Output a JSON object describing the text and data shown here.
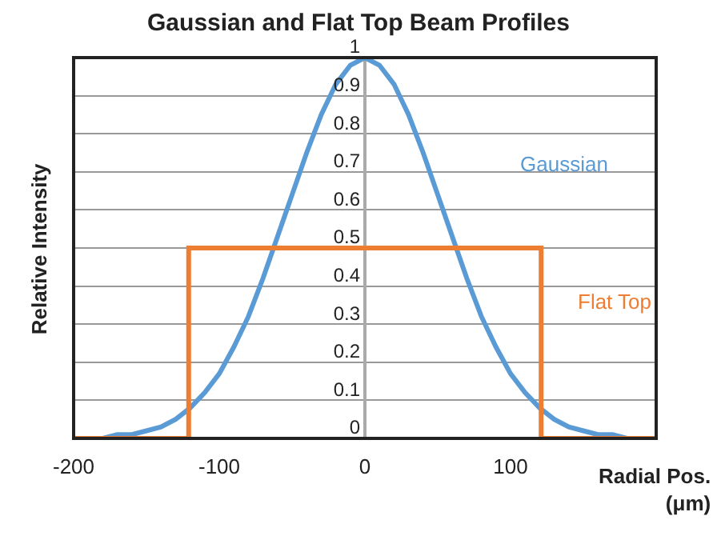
{
  "chart_data": {
    "type": "line",
    "title": "Gaussian and Flat Top Beam Profiles",
    "xlabel": "Radial Pos.\n(μm)",
    "ylabel": "Relative Intensity",
    "xlim": [
      -200,
      200
    ],
    "xticks": [
      -200,
      -100,
      0,
      100
    ],
    "ylim": [
      0,
      1
    ],
    "yticks": [
      0,
      0.1,
      0.2,
      0.3,
      0.4,
      0.5,
      0.6,
      0.7,
      0.8,
      0.9,
      1
    ],
    "grid": "y",
    "legend": false,
    "series": [
      {
        "name": "Gaussian",
        "color": "#5b9bd5",
        "x": [
          -200,
          -190,
          -180,
          -170,
          -160,
          -150,
          -140,
          -130,
          -120,
          -110,
          -100,
          -90,
          -80,
          -70,
          -60,
          -50,
          -40,
          -30,
          -20,
          -10,
          0,
          10,
          20,
          30,
          40,
          50,
          60,
          70,
          80,
          90,
          100,
          110,
          120,
          130,
          140,
          150,
          160,
          170,
          180,
          190,
          200
        ],
        "values": [
          0,
          0,
          0,
          0.01,
          0.01,
          0.02,
          0.03,
          0.05,
          0.08,
          0.12,
          0.17,
          0.24,
          0.32,
          0.42,
          0.53,
          0.64,
          0.75,
          0.85,
          0.93,
          0.98,
          1,
          0.98,
          0.93,
          0.85,
          0.75,
          0.64,
          0.53,
          0.42,
          0.32,
          0.24,
          0.17,
          0.12,
          0.08,
          0.05,
          0.03,
          0.02,
          0.01,
          0.01,
          0,
          0,
          0
        ]
      },
      {
        "name": "Flat Top",
        "type": "step",
        "color": "#ed7d31",
        "x": [
          -200,
          -121,
          121,
          200
        ],
        "values": [
          0,
          0.5,
          0,
          0
        ]
      }
    ]
  }
}
